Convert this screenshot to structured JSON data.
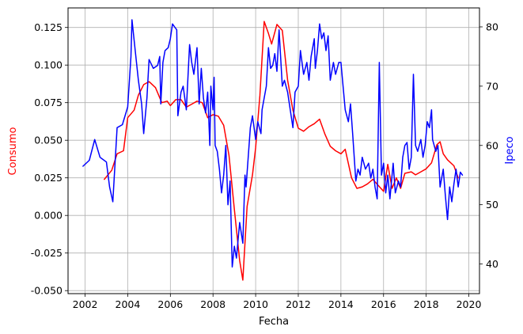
{
  "chart_data": {
    "type": "line",
    "xlabel": "Fecha",
    "x_ticks": [
      "2002",
      "2004",
      "2006",
      "2008",
      "2010",
      "2012",
      "2014",
      "2016",
      "2018",
      "2020"
    ],
    "xlim": [
      2001.2,
      2020.5
    ],
    "grid": true,
    "colors": {
      "Consumo": "#ff0000",
      "Ipeco": "#0000ff"
    },
    "left_axis": {
      "label": "Consumo",
      "label_color": "#ff0000",
      "ylim": [
        -0.052,
        0.138
      ],
      "ticks": [
        "-0.050",
        "-0.025",
        "0.000",
        "0.025",
        "0.050",
        "0.075",
        "0.100",
        "0.125"
      ]
    },
    "right_axis": {
      "label": "Ipeco",
      "label_color": "#0000ff",
      "ylim": [
        35,
        83.2
      ],
      "ticks": [
        "40",
        "50",
        "60",
        "70",
        "80"
      ]
    },
    "series": [
      {
        "name": "Consumo",
        "axis": "left",
        "color": "#ff0000",
        "points": [
          [
            2002.9,
            0.024
          ],
          [
            2003.25,
            0.03
          ],
          [
            2003.5,
            0.041
          ],
          [
            2003.8,
            0.043
          ],
          [
            2004.0,
            0.065
          ],
          [
            2004.3,
            0.07
          ],
          [
            2004.5,
            0.08
          ],
          [
            2004.75,
            0.087
          ],
          [
            2005.0,
            0.089
          ],
          [
            2005.3,
            0.085
          ],
          [
            2005.6,
            0.075
          ],
          [
            2005.85,
            0.076
          ],
          [
            2006.0,
            0.073
          ],
          [
            2006.25,
            0.077
          ],
          [
            2006.5,
            0.077
          ],
          [
            2006.75,
            0.072
          ],
          [
            2007.0,
            0.074
          ],
          [
            2007.25,
            0.076
          ],
          [
            2007.5,
            0.075
          ],
          [
            2007.75,
            0.065
          ],
          [
            2008.0,
            0.067
          ],
          [
            2008.25,
            0.066
          ],
          [
            2008.5,
            0.06
          ],
          [
            2008.75,
            0.04
          ],
          [
            2009.0,
            0.004
          ],
          [
            2009.25,
            -0.03
          ],
          [
            2009.4,
            -0.043
          ],
          [
            2009.6,
            0.006
          ],
          [
            2009.85,
            0.027
          ],
          [
            2010.0,
            0.045
          ],
          [
            2010.2,
            0.08
          ],
          [
            2010.4,
            0.129
          ],
          [
            2010.6,
            0.121
          ],
          [
            2010.75,
            0.114
          ],
          [
            2011.0,
            0.127
          ],
          [
            2011.25,
            0.123
          ],
          [
            2011.5,
            0.09
          ],
          [
            2011.75,
            0.07
          ],
          [
            2012.0,
            0.058
          ],
          [
            2012.25,
            0.056
          ],
          [
            2012.5,
            0.059
          ],
          [
            2012.75,
            0.061
          ],
          [
            2013.0,
            0.064
          ],
          [
            2013.25,
            0.054
          ],
          [
            2013.5,
            0.046
          ],
          [
            2013.75,
            0.043
          ],
          [
            2014.0,
            0.041
          ],
          [
            2014.2,
            0.044
          ],
          [
            2014.5,
            0.025
          ],
          [
            2014.75,
            0.018
          ],
          [
            2015.0,
            0.019
          ],
          [
            2015.25,
            0.021
          ],
          [
            2015.5,
            0.024
          ],
          [
            2015.75,
            0.02
          ],
          [
            2016.0,
            0.016
          ],
          [
            2016.2,
            0.034
          ],
          [
            2016.4,
            0.018
          ],
          [
            2016.6,
            0.025
          ],
          [
            2016.8,
            0.018
          ],
          [
            2017.0,
            0.028
          ],
          [
            2017.3,
            0.029
          ],
          [
            2017.5,
            0.027
          ],
          [
            2017.75,
            0.029
          ],
          [
            2018.0,
            0.031
          ],
          [
            2018.25,
            0.035
          ],
          [
            2018.5,
            0.047
          ],
          [
            2018.65,
            0.049
          ],
          [
            2018.8,
            0.041
          ],
          [
            2019.0,
            0.037
          ],
          [
            2019.3,
            0.033
          ],
          [
            2019.5,
            0.025
          ]
        ]
      },
      {
        "name": "Ipeco",
        "axis": "right",
        "color": "#0000ff",
        "points": [
          [
            2001.9,
            56.5
          ],
          [
            2002.2,
            57.5
          ],
          [
            2002.45,
            61.0
          ],
          [
            2002.7,
            58.0
          ],
          [
            2003.0,
            57.2
          ],
          [
            2003.15,
            53.0
          ],
          [
            2003.3,
            50.5
          ],
          [
            2003.5,
            63.0
          ],
          [
            2003.75,
            63.5
          ],
          [
            2004.0,
            66.5
          ],
          [
            2004.15,
            75.0
          ],
          [
            2004.2,
            81.2
          ],
          [
            2004.35,
            76.0
          ],
          [
            2004.5,
            71.0
          ],
          [
            2004.65,
            67.0
          ],
          [
            2004.75,
            62.0
          ],
          [
            2004.9,
            68.0
          ],
          [
            2005.0,
            74.5
          ],
          [
            2005.2,
            73.0
          ],
          [
            2005.4,
            73.5
          ],
          [
            2005.5,
            75.0
          ],
          [
            2005.55,
            67.0
          ],
          [
            2005.65,
            74.0
          ],
          [
            2005.75,
            76.0
          ],
          [
            2005.9,
            76.5
          ],
          [
            2006.0,
            78.0
          ],
          [
            2006.1,
            80.5
          ],
          [
            2006.2,
            80.0
          ],
          [
            2006.3,
            79.5
          ],
          [
            2006.35,
            65.0
          ],
          [
            2006.5,
            69.0
          ],
          [
            2006.6,
            70.0
          ],
          [
            2006.75,
            66.0
          ],
          [
            2006.9,
            77.0
          ],
          [
            2007.0,
            74.0
          ],
          [
            2007.1,
            72.0
          ],
          [
            2007.25,
            76.5
          ],
          [
            2007.35,
            67.0
          ],
          [
            2007.45,
            73.0
          ],
          [
            2007.55,
            68.0
          ],
          [
            2007.65,
            65.5
          ],
          [
            2007.75,
            69.0
          ],
          [
            2007.85,
            60.0
          ],
          [
            2007.9,
            70.0
          ],
          [
            2008.0,
            66.0
          ],
          [
            2008.05,
            71.5
          ],
          [
            2008.1,
            60.0
          ],
          [
            2008.2,
            59.0
          ],
          [
            2008.3,
            56.0
          ],
          [
            2008.4,
            52.0
          ],
          [
            2008.5,
            55.0
          ],
          [
            2008.6,
            60.0
          ],
          [
            2008.7,
            50.0
          ],
          [
            2008.8,
            54.0
          ],
          [
            2008.9,
            39.5
          ],
          [
            2009.0,
            43.0
          ],
          [
            2009.1,
            41.0
          ],
          [
            2009.25,
            47.0
          ],
          [
            2009.4,
            43.5
          ],
          [
            2009.5,
            55.0
          ],
          [
            2009.55,
            53.0
          ],
          [
            2009.65,
            58.0
          ],
          [
            2009.75,
            63.0
          ],
          [
            2009.85,
            65.0
          ],
          [
            2010.0,
            61.0
          ],
          [
            2010.1,
            64.0
          ],
          [
            2010.25,
            62.0
          ],
          [
            2010.3,
            66.0
          ],
          [
            2010.4,
            68.0
          ],
          [
            2010.5,
            70.0
          ],
          [
            2010.6,
            76.5
          ],
          [
            2010.7,
            73.0
          ],
          [
            2010.8,
            73.5
          ],
          [
            2010.9,
            75.5
          ],
          [
            2011.0,
            72.5
          ],
          [
            2011.1,
            79.5
          ],
          [
            2011.25,
            70.0
          ],
          [
            2011.35,
            71.0
          ],
          [
            2011.5,
            69.0
          ],
          [
            2011.75,
            63.0
          ],
          [
            2011.85,
            69.0
          ],
          [
            2012.0,
            70.0
          ],
          [
            2012.1,
            76.0
          ],
          [
            2012.25,
            72.0
          ],
          [
            2012.4,
            74.0
          ],
          [
            2012.5,
            71.0
          ],
          [
            2012.6,
            75.0
          ],
          [
            2012.75,
            78.0
          ],
          [
            2012.8,
            73.0
          ],
          [
            2012.9,
            76.0
          ],
          [
            2013.0,
            80.5
          ],
          [
            2013.1,
            78.0
          ],
          [
            2013.2,
            79.0
          ],
          [
            2013.3,
            76.0
          ],
          [
            2013.4,
            78.5
          ],
          [
            2013.5,
            71.0
          ],
          [
            2013.65,
            74.0
          ],
          [
            2013.75,
            72.0
          ],
          [
            2013.9,
            74.0
          ],
          [
            2014.0,
            74.0
          ],
          [
            2014.1,
            70.0
          ],
          [
            2014.2,
            66.0
          ],
          [
            2014.35,
            64.0
          ],
          [
            2014.45,
            67.0
          ],
          [
            2014.55,
            62.0
          ],
          [
            2014.7,
            54.0
          ],
          [
            2014.8,
            56.0
          ],
          [
            2014.9,
            55.0
          ],
          [
            2015.0,
            58.0
          ],
          [
            2015.15,
            56.0
          ],
          [
            2015.3,
            57.0
          ],
          [
            2015.4,
            54.5
          ],
          [
            2015.5,
            56.0
          ],
          [
            2015.6,
            53.0
          ],
          [
            2015.7,
            51.0
          ],
          [
            2015.8,
            74.0
          ],
          [
            2015.9,
            55.0
          ],
          [
            2016.0,
            57.0
          ],
          [
            2016.1,
            52.0
          ],
          [
            2016.2,
            55.0
          ],
          [
            2016.3,
            51.0
          ],
          [
            2016.45,
            57.0
          ],
          [
            2016.55,
            52.0
          ],
          [
            2016.7,
            54.0
          ],
          [
            2016.8,
            53.0
          ],
          [
            2016.9,
            58.0
          ],
          [
            2017.0,
            60.0
          ],
          [
            2017.1,
            60.5
          ],
          [
            2017.2,
            56.0
          ],
          [
            2017.3,
            58.0
          ],
          [
            2017.4,
            72.0
          ],
          [
            2017.5,
            60.0
          ],
          [
            2017.6,
            59.0
          ],
          [
            2017.75,
            61.0
          ],
          [
            2017.85,
            58.0
          ],
          [
            2017.95,
            60.0
          ],
          [
            2018.05,
            64.0
          ],
          [
            2018.15,
            63.0
          ],
          [
            2018.25,
            66.0
          ],
          [
            2018.3,
            61.0
          ],
          [
            2018.45,
            59.0
          ],
          [
            2018.55,
            60.0
          ],
          [
            2018.65,
            53.0
          ],
          [
            2018.8,
            56.0
          ],
          [
            2018.9,
            51.5
          ],
          [
            2019.0,
            47.5
          ],
          [
            2019.1,
            53.0
          ],
          [
            2019.2,
            50.5
          ],
          [
            2019.3,
            53.5
          ],
          [
            2019.4,
            56.0
          ],
          [
            2019.5,
            53.0
          ],
          [
            2019.6,
            55.5
          ],
          [
            2019.7,
            55.0
          ]
        ]
      }
    ]
  }
}
